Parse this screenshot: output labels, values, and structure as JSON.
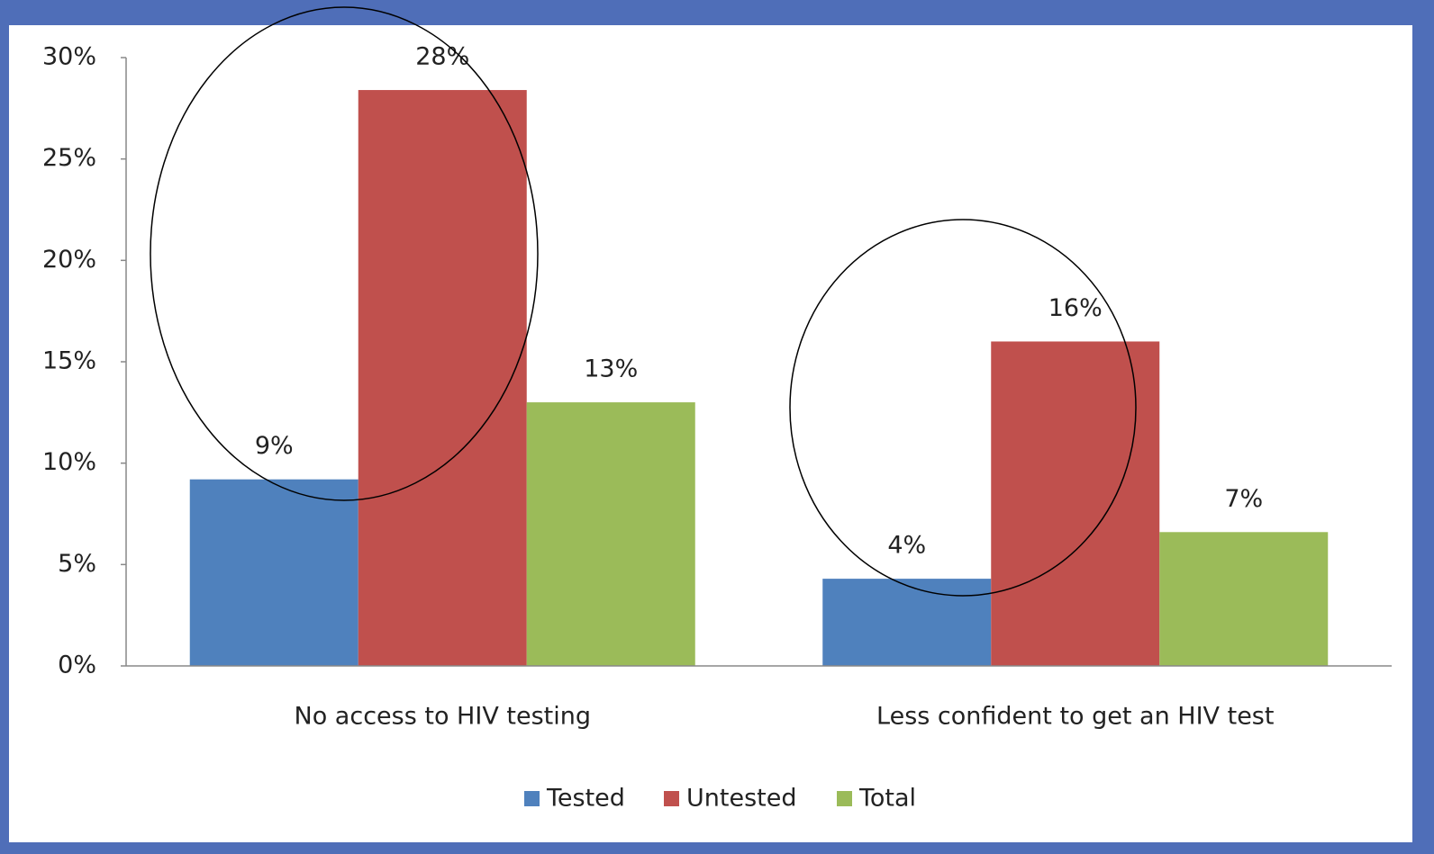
{
  "chart_data": {
    "type": "bar",
    "categories": [
      "No access to HIV testing",
      "Less confident to get an HIV test"
    ],
    "series": [
      {
        "name": "Tested",
        "color": "#4f81bd",
        "values": [
          9.2,
          4.3
        ],
        "value_labels": [
          "9%",
          "4%"
        ]
      },
      {
        "name": "Untested",
        "color": "#c0504d",
        "values": [
          28.4,
          16.0
        ],
        "value_labels": [
          "28%",
          "16%"
        ]
      },
      {
        "name": "Total",
        "color": "#9bbb59",
        "values": [
          13.0,
          6.6
        ],
        "value_labels": [
          "13%",
          "7%"
        ]
      }
    ],
    "ylim": [
      0,
      30
    ],
    "yticks": [
      {
        "value": 0,
        "label": "0%"
      },
      {
        "value": 5,
        "label": "5%"
      },
      {
        "value": 10,
        "label": "10%"
      },
      {
        "value": 15,
        "label": "15%"
      },
      {
        "value": 20,
        "label": "20%"
      },
      {
        "value": 25,
        "label": "25%"
      },
      {
        "value": 30,
        "label": "30%"
      }
    ],
    "grid": false,
    "legend": "bottom"
  }
}
